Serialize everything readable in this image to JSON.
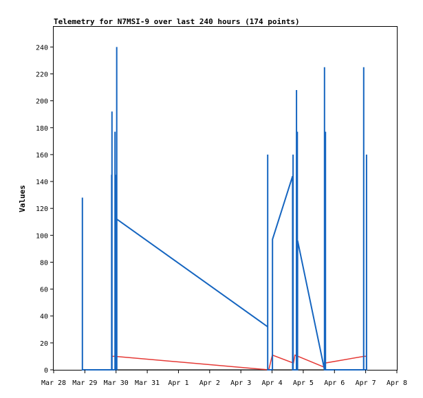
{
  "chart_data": {
    "type": "line",
    "title": "Telemetry for N7MSI-9 over last 240 hours (174 points)",
    "xlabel": "",
    "ylabel": "Values",
    "x_tick_labels": [
      "Mar 28",
      "Mar 29",
      "Mar 30",
      "Mar 31",
      "Apr 1",
      "Apr 2",
      "Apr 3",
      "Apr 4",
      "Apr 5",
      "Apr 6",
      "Apr 7",
      "Apr 8"
    ],
    "y_ticks": [
      0,
      20,
      40,
      60,
      80,
      100,
      120,
      140,
      160,
      180,
      200,
      220,
      240
    ],
    "xlim": [
      "2023-03-28 00:00",
      "2023-04-08 00:00"
    ],
    "ylim": [
      0,
      255
    ],
    "grid": false,
    "legend": "none",
    "series": [
      {
        "color": "#1565c0",
        "points": [
          [
            "2023-03-28 22:06",
            128
          ],
          [
            "2023-03-28 22:07",
            0
          ],
          [
            "2023-03-29 20:36",
            0
          ],
          [
            "2023-03-29 20:37",
            145
          ],
          [
            "2023-03-29 20:38",
            0
          ],
          [
            "2023-03-29 20:50",
            0
          ],
          [
            "2023-03-29 20:51",
            192
          ],
          [
            "2023-03-29 20:52",
            0
          ],
          [
            "2023-03-29 23:10",
            0
          ],
          [
            "2023-03-29 23:11",
            177
          ],
          [
            "2023-03-29 23:12",
            0
          ],
          [
            "2023-03-29 23:36",
            0
          ],
          [
            "2023-03-29 23:37",
            145
          ],
          [
            "2023-03-29 23:38",
            0
          ],
          [
            "2023-03-30 00:31",
            0
          ],
          [
            "2023-03-30 00:32",
            240
          ],
          [
            "2023-03-30 00:33",
            0
          ],
          [
            "2023-03-30 00:34",
            112
          ],
          [
            "2023-04-03 20:38",
            32
          ],
          [
            "2023-04-03 20:39",
            160
          ],
          [
            "2023-04-03 20:40",
            0
          ],
          [
            "2023-04-04 00:19",
            0
          ],
          [
            "2023-04-04 00:20",
            97
          ],
          [
            "2023-04-04 15:49",
            144
          ],
          [
            "2023-04-04 15:50",
            0
          ],
          [
            "2023-04-04 16:08",
            0
          ],
          [
            "2023-04-04 16:09",
            160
          ],
          [
            "2023-04-04 16:10",
            0
          ],
          [
            "2023-04-04 18:47",
            0
          ],
          [
            "2023-04-04 18:48",
            208
          ],
          [
            "2023-04-04 18:49",
            0
          ],
          [
            "2023-04-04 19:27",
            0
          ],
          [
            "2023-04-04 19:28",
            177
          ],
          [
            "2023-04-04 19:29",
            0
          ],
          [
            "2023-04-04 19:37",
            0
          ],
          [
            "2023-04-04 19:38",
            96
          ],
          [
            "2023-04-05 16:20",
            0
          ],
          [
            "2023-04-05 16:21",
            225
          ],
          [
            "2023-04-05 16:22",
            0
          ],
          [
            "2023-04-05 17:03",
            0
          ],
          [
            "2023-04-05 17:04",
            177
          ],
          [
            "2023-04-05 17:05",
            0
          ],
          [
            "2023-04-06 22:28",
            0
          ],
          [
            "2023-04-06 22:29",
            225
          ],
          [
            "2023-04-06 22:30",
            0
          ],
          [
            "2023-04-07 00:38",
            0
          ],
          [
            "2023-04-07 00:39",
            160
          ],
          [
            "2023-04-07 00:40",
            0
          ]
        ]
      },
      {
        "color": "#e53935",
        "points": [
          [
            "2023-03-29 21:10",
            10
          ],
          [
            "2023-03-29 23:00",
            10
          ],
          [
            "2023-04-03 21:30",
            0
          ],
          [
            "2023-04-04 00:10",
            11
          ],
          [
            "2023-04-04 16:30",
            5
          ],
          [
            "2023-04-04 17:40",
            11
          ],
          [
            "2023-04-05 16:00",
            2
          ],
          [
            "2023-04-05 16:40",
            5
          ],
          [
            "2023-04-06 22:40",
            10
          ],
          [
            "2023-04-07 01:00",
            10
          ]
        ]
      },
      {
        "color": "#444444",
        "points": [
          [
            "2023-03-28 22:00",
            0
          ],
          [
            "2023-04-07 01:00",
            0
          ]
        ]
      }
    ]
  }
}
